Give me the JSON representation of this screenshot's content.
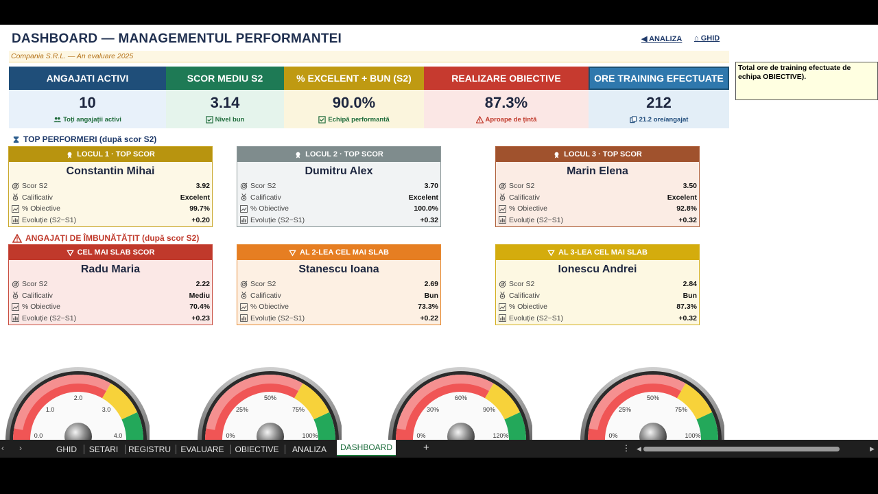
{
  "header": {
    "title": "DASHBOARD — MANAGEMENTUL PERFORMANTEI",
    "subtitle": "Compania S.R.L. — An evaluare 2025",
    "link_analiza": "◀ ANALIZA",
    "link_ghid": "⌂ GHID"
  },
  "kpis": [
    {
      "title": "ANGAJATI ACTIVI",
      "value": "10",
      "sub": "Toți angajații activi",
      "sub_icon": "people-icon",
      "head_color": "#1f4e79",
      "body_color": "#e8f1fa",
      "sub_color": "#1e6b3a"
    },
    {
      "title": "SCOR MEDIU S2",
      "value": "3.14",
      "sub": "Nivel bun",
      "sub_icon": "check-box-icon",
      "head_color": "#1e7a55",
      "body_color": "#e5f4ec",
      "sub_color": "#1e6b3a"
    },
    {
      "title": "% EXCELENT + BUN (S2)",
      "value": "90.0%",
      "sub": "Echipă performantă",
      "sub_icon": "check-box-icon",
      "head_color": "#bf9a12",
      "body_color": "#fbf5dd",
      "sub_color": "#1e6b3a"
    },
    {
      "title": "REALIZARE OBIECTIVE",
      "value": "87.3%",
      "sub": "Aproape de țintă",
      "sub_icon": "warning-icon",
      "head_color": "#c63a2f",
      "body_color": "#fbe7e5",
      "sub_color": "#c0392b"
    },
    {
      "title": "ORE TRAINING EFECTUATE",
      "value": "212",
      "sub": "21.2 ore/angajat",
      "sub_icon": "copy-icon",
      "head_color": "#2f78ad",
      "body_color": "#e3eef7",
      "sub_color": "#1e4a7a"
    }
  ],
  "comment": "Total ore de training efectuate de echipa OBIECTIVE).",
  "top": {
    "title": "TOP PERFORMERI (după scor S2)",
    "cards": [
      {
        "head": "LOCUL 1 · TOP SCOR",
        "name": "Constantin Mihai",
        "scor": "3.92",
        "calificativ": "Excelent",
        "obiective": "99.7%",
        "evolutie": "+0.20",
        "head_color": "#b8940f",
        "body_color": "#fdf8e6",
        "border": "#c9a72a"
      },
      {
        "head": "LOCUL 2 · TOP SCOR",
        "name": "Dumitru Alex",
        "scor": "3.70",
        "calificativ": "Excelent",
        "obiective": "100.0%",
        "evolutie": "+0.32",
        "head_color": "#7f8c8d",
        "body_color": "#f1f3f4",
        "border": "#8e9a9b"
      },
      {
        "head": "LOCUL 3 · TOP SCOR",
        "name": "Marin Elena",
        "scor": "3.50",
        "calificativ": "Excelent",
        "obiective": "92.8%",
        "evolutie": "+0.32",
        "head_color": "#a0522d",
        "body_color": "#fbece4",
        "border": "#b0623d"
      }
    ]
  },
  "bottom": {
    "title": "ANGAJAȚI DE ÎMBUNĂTĂȚIT (după scor S2)",
    "cards": [
      {
        "head": "CEL MAI SLAB SCOR",
        "name": "Radu Maria",
        "scor": "2.22",
        "calificativ": "Mediu",
        "obiective": "70.4%",
        "evolutie": "+0.23",
        "head_color": "#c0392b",
        "body_color": "#fbe8e6",
        "border": "#c84b3e"
      },
      {
        "head": "AL 2-LEA CEL MAI SLAB",
        "name": "Stanescu Ioana",
        "scor": "2.69",
        "calificativ": "Bun",
        "obiective": "73.3%",
        "evolutie": "+0.22",
        "head_color": "#e67e22",
        "body_color": "#fdf0e3",
        "border": "#e68a33"
      },
      {
        "head": "AL 3-LEA CEL MAI SLAB",
        "name": "Ionescu Andrei",
        "scor": "2.84",
        "calificativ": "Bun",
        "obiective": "87.3%",
        "evolutie": "+0.32",
        "head_color": "#d4ac0d",
        "body_color": "#fdf8e2",
        "border": "#d4b020"
      }
    ]
  },
  "labels": {
    "scor": "Scor S2",
    "calificativ": "Calificativ",
    "obiective": "% Obiective",
    "evolutie": "Evoluție (S2−S1)"
  },
  "gauges": [
    {
      "ticks": [
        "0.0",
        "1.0",
        "2.0",
        "3.0",
        "4.0"
      ]
    },
    {
      "ticks": [
        "0%",
        "25%",
        "50%",
        "75%",
        "100%"
      ]
    },
    {
      "ticks": [
        "0%",
        "30%",
        "60%",
        "90%",
        "120%"
      ]
    },
    {
      "ticks": [
        "0%",
        "25%",
        "50%",
        "75%",
        "100%"
      ]
    }
  ],
  "tabs": [
    "GHID",
    "SETARI",
    "REGISTRU",
    "EVALUARE",
    "OBIECTIVE",
    "ANALIZA",
    "DASHBOARD"
  ],
  "active_tab": "DASHBOARD",
  "add_tab": "+"
}
